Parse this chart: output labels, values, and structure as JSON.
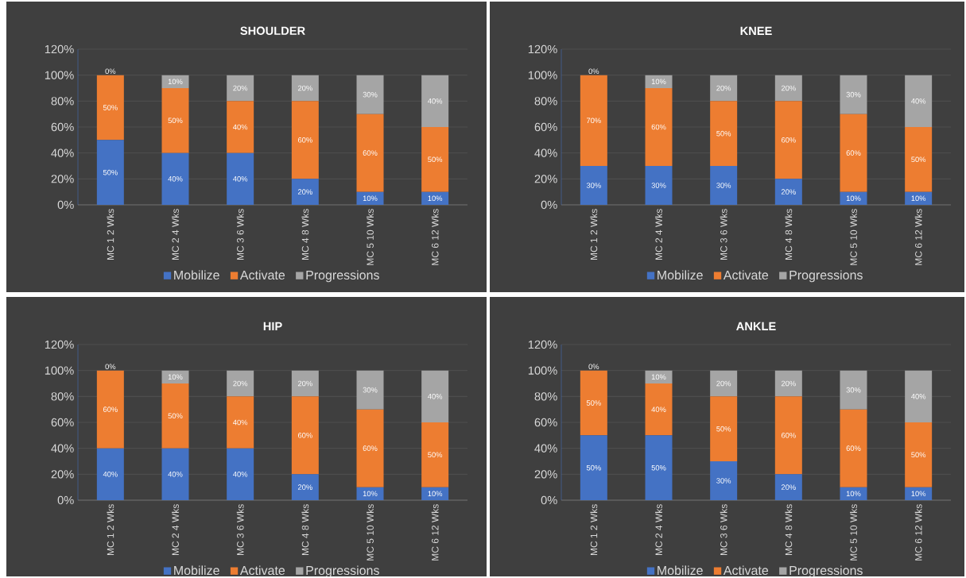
{
  "chart_data": [
    {
      "type": "bar",
      "title": "SHOULDER",
      "stacked": true,
      "grid": "y",
      "legend": "bottom",
      "categories": [
        "MC 1 2 Wks",
        "MC 2 4 Wks",
        "MC 3 6 Wks",
        "MC 4 8 Wks",
        "MC 5 10 Wks",
        "MC 6 12 Wks"
      ],
      "ylim": [
        0,
        120
      ],
      "yticks": [
        {
          "value": 0,
          "label": "0%"
        },
        {
          "value": 20,
          "label": "20%"
        },
        {
          "value": 40,
          "label": "40%"
        },
        {
          "value": 60,
          "label": "60%"
        },
        {
          "value": 80,
          "label": "80%"
        },
        {
          "value": 100,
          "label": "100%"
        },
        {
          "value": 120,
          "label": "120%"
        }
      ],
      "series": [
        {
          "name": "Mobilize",
          "color": "#4472c4",
          "values": [
            50,
            40,
            40,
            20,
            10,
            10
          ],
          "value_labels": [
            "50%",
            "40%",
            "40%",
            "20%",
            "10%",
            "10%"
          ]
        },
        {
          "name": "Activate",
          "color": "#ed7d31",
          "values": [
            50,
            50,
            40,
            60,
            60,
            50
          ],
          "value_labels": [
            "50%",
            "50%",
            "40%",
            "60%",
            "60%",
            "50%"
          ]
        },
        {
          "name": "Progressions",
          "color": "#a5a5a5",
          "values": [
            0,
            10,
            20,
            20,
            30,
            40
          ],
          "value_labels": [
            "0%",
            "10%",
            "20%",
            "20%",
            "30%",
            "40%"
          ]
        }
      ]
    },
    {
      "type": "bar",
      "title": "KNEE",
      "stacked": true,
      "grid": "y",
      "legend": "bottom",
      "categories": [
        "MC 1 2 Wks",
        "MC 2 4 Wks",
        "MC 3 6 Wks",
        "MC 4 8 Wks",
        "MC 5 10 Wks",
        "MC 6 12 Wks"
      ],
      "ylim": [
        0,
        120
      ],
      "yticks": [
        {
          "value": 0,
          "label": "0%"
        },
        {
          "value": 20,
          "label": "20%"
        },
        {
          "value": 40,
          "label": "40%"
        },
        {
          "value": 60,
          "label": "60%"
        },
        {
          "value": 80,
          "label": "80%"
        },
        {
          "value": 100,
          "label": "100%"
        },
        {
          "value": 120,
          "label": "120%"
        }
      ],
      "series": [
        {
          "name": "Mobilize",
          "color": "#4472c4",
          "values": [
            30,
            30,
            30,
            20,
            10,
            10
          ],
          "value_labels": [
            "30%",
            "30%",
            "30%",
            "20%",
            "10%",
            "10%"
          ]
        },
        {
          "name": "Activate",
          "color": "#ed7d31",
          "values": [
            70,
            60,
            50,
            60,
            60,
            50
          ],
          "value_labels": [
            "70%",
            "60%",
            "50%",
            "60%",
            "60%",
            "50%"
          ]
        },
        {
          "name": "Progressions",
          "color": "#a5a5a5",
          "values": [
            0,
            10,
            20,
            20,
            30,
            40
          ],
          "value_labels": [
            "0%",
            "10%",
            "20%",
            "20%",
            "30%",
            "40%"
          ]
        }
      ]
    },
    {
      "type": "bar",
      "title": "HIP",
      "stacked": true,
      "grid": "y",
      "legend": "bottom",
      "categories": [
        "MC 1 2 Wks",
        "MC 2 4 Wks",
        "MC 3 6 Wks",
        "MC 4 8 Wks",
        "MC 5 10 Wks",
        "MC 6 12 Wks"
      ],
      "ylim": [
        0,
        120
      ],
      "yticks": [
        {
          "value": 0,
          "label": "0%"
        },
        {
          "value": 20,
          "label": "20%"
        },
        {
          "value": 40,
          "label": "40%"
        },
        {
          "value": 60,
          "label": "60%"
        },
        {
          "value": 80,
          "label": "80%"
        },
        {
          "value": 100,
          "label": "100%"
        },
        {
          "value": 120,
          "label": "120%"
        }
      ],
      "series": [
        {
          "name": "Mobilize",
          "color": "#4472c4",
          "values": [
            40,
            40,
            40,
            20,
            10,
            10
          ],
          "value_labels": [
            "40%",
            "40%",
            "40%",
            "20%",
            "10%",
            "10%"
          ]
        },
        {
          "name": "Activate",
          "color": "#ed7d31",
          "values": [
            60,
            50,
            40,
            60,
            60,
            50
          ],
          "value_labels": [
            "60%",
            "50%",
            "40%",
            "60%",
            "60%",
            "50%"
          ]
        },
        {
          "name": "Progressions",
          "color": "#a5a5a5",
          "values": [
            0,
            10,
            20,
            20,
            30,
            40
          ],
          "value_labels": [
            "0%",
            "10%",
            "20%",
            "20%",
            "30%",
            "40%"
          ]
        }
      ]
    },
    {
      "type": "bar",
      "title": "ANKLE",
      "stacked": true,
      "grid": "y",
      "legend": "bottom",
      "categories": [
        "MC 1 2 Wks",
        "MC 2 4 Wks",
        "MC 3 6 Wks",
        "MC 4 8 Wks",
        "MC 5 10 Wks",
        "MC 6 12 Wks"
      ],
      "ylim": [
        0,
        120
      ],
      "yticks": [
        {
          "value": 0,
          "label": "0%"
        },
        {
          "value": 20,
          "label": "20%"
        },
        {
          "value": 40,
          "label": "40%"
        },
        {
          "value": 60,
          "label": "60%"
        },
        {
          "value": 80,
          "label": "80%"
        },
        {
          "value": 100,
          "label": "100%"
        },
        {
          "value": 120,
          "label": "120%"
        }
      ],
      "series": [
        {
          "name": "Mobilize",
          "color": "#4472c4",
          "values": [
            50,
            50,
            30,
            20,
            10,
            10
          ],
          "value_labels": [
            "50%",
            "50%",
            "30%",
            "20%",
            "10%",
            "10%"
          ]
        },
        {
          "name": "Activate",
          "color": "#ed7d31",
          "values": [
            50,
            40,
            50,
            60,
            60,
            50
          ],
          "value_labels": [
            "50%",
            "40%",
            "50%",
            "60%",
            "60%",
            "50%"
          ]
        },
        {
          "name": "Progressions",
          "color": "#a5a5a5",
          "values": [
            0,
            10,
            20,
            20,
            30,
            40
          ],
          "value_labels": [
            "0%",
            "10%",
            "20%",
            "20%",
            "30%",
            "40%"
          ]
        }
      ]
    }
  ]
}
